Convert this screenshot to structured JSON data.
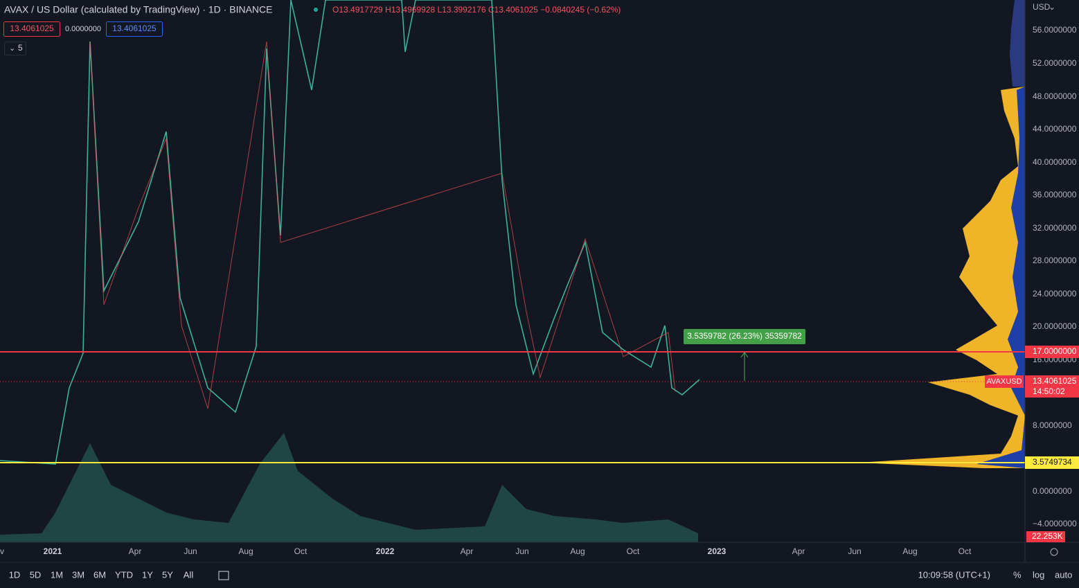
{
  "header": {
    "title": "AVAX / US Dollar (calculated by TradingView) · 1D · BINANCE",
    "ohlc": "O13.4917729 H13.4969928 L13.3992176 C13.4061025 −0.0840245 (−0.62%)",
    "sell": "13.4061025",
    "spread": "0.0000000",
    "buy": "13.4061025",
    "indicators": "5"
  },
  "price_axis": {
    "currency": "USD",
    "ticks": [
      "56.0000000",
      "52.0000000",
      "48.0000000",
      "44.0000000",
      "40.0000000",
      "36.0000000",
      "32.0000000",
      "28.0000000",
      "24.0000000",
      "20.0000000",
      "16.0000000",
      "8.0000000",
      "0.0000000",
      "−4.0000000"
    ],
    "red_line": "17.0000000",
    "symbol": "AVAXUSD",
    "last_price": "13.4061025",
    "countdown": "14:50:02",
    "yellow_line": "3.5749734",
    "volume": "22.253K"
  },
  "measure": "3.5359782 (26.23%) 35359782",
  "time_axis": [
    "v",
    "2021",
    "Apr",
    "Jun",
    "Aug",
    "Oct",
    "2022",
    "Apr",
    "Jun",
    "Aug",
    "Oct",
    "2023",
    "Apr",
    "Jun",
    "Aug",
    "Oct"
  ],
  "toolbar": {
    "ranges": [
      "1D",
      "5D",
      "1M",
      "3M",
      "6M",
      "YTD",
      "1Y",
      "5Y",
      "All"
    ],
    "clock": "10:09:58 (UTC+1)",
    "percent": "%",
    "log": "log",
    "auto": "auto"
  }
}
